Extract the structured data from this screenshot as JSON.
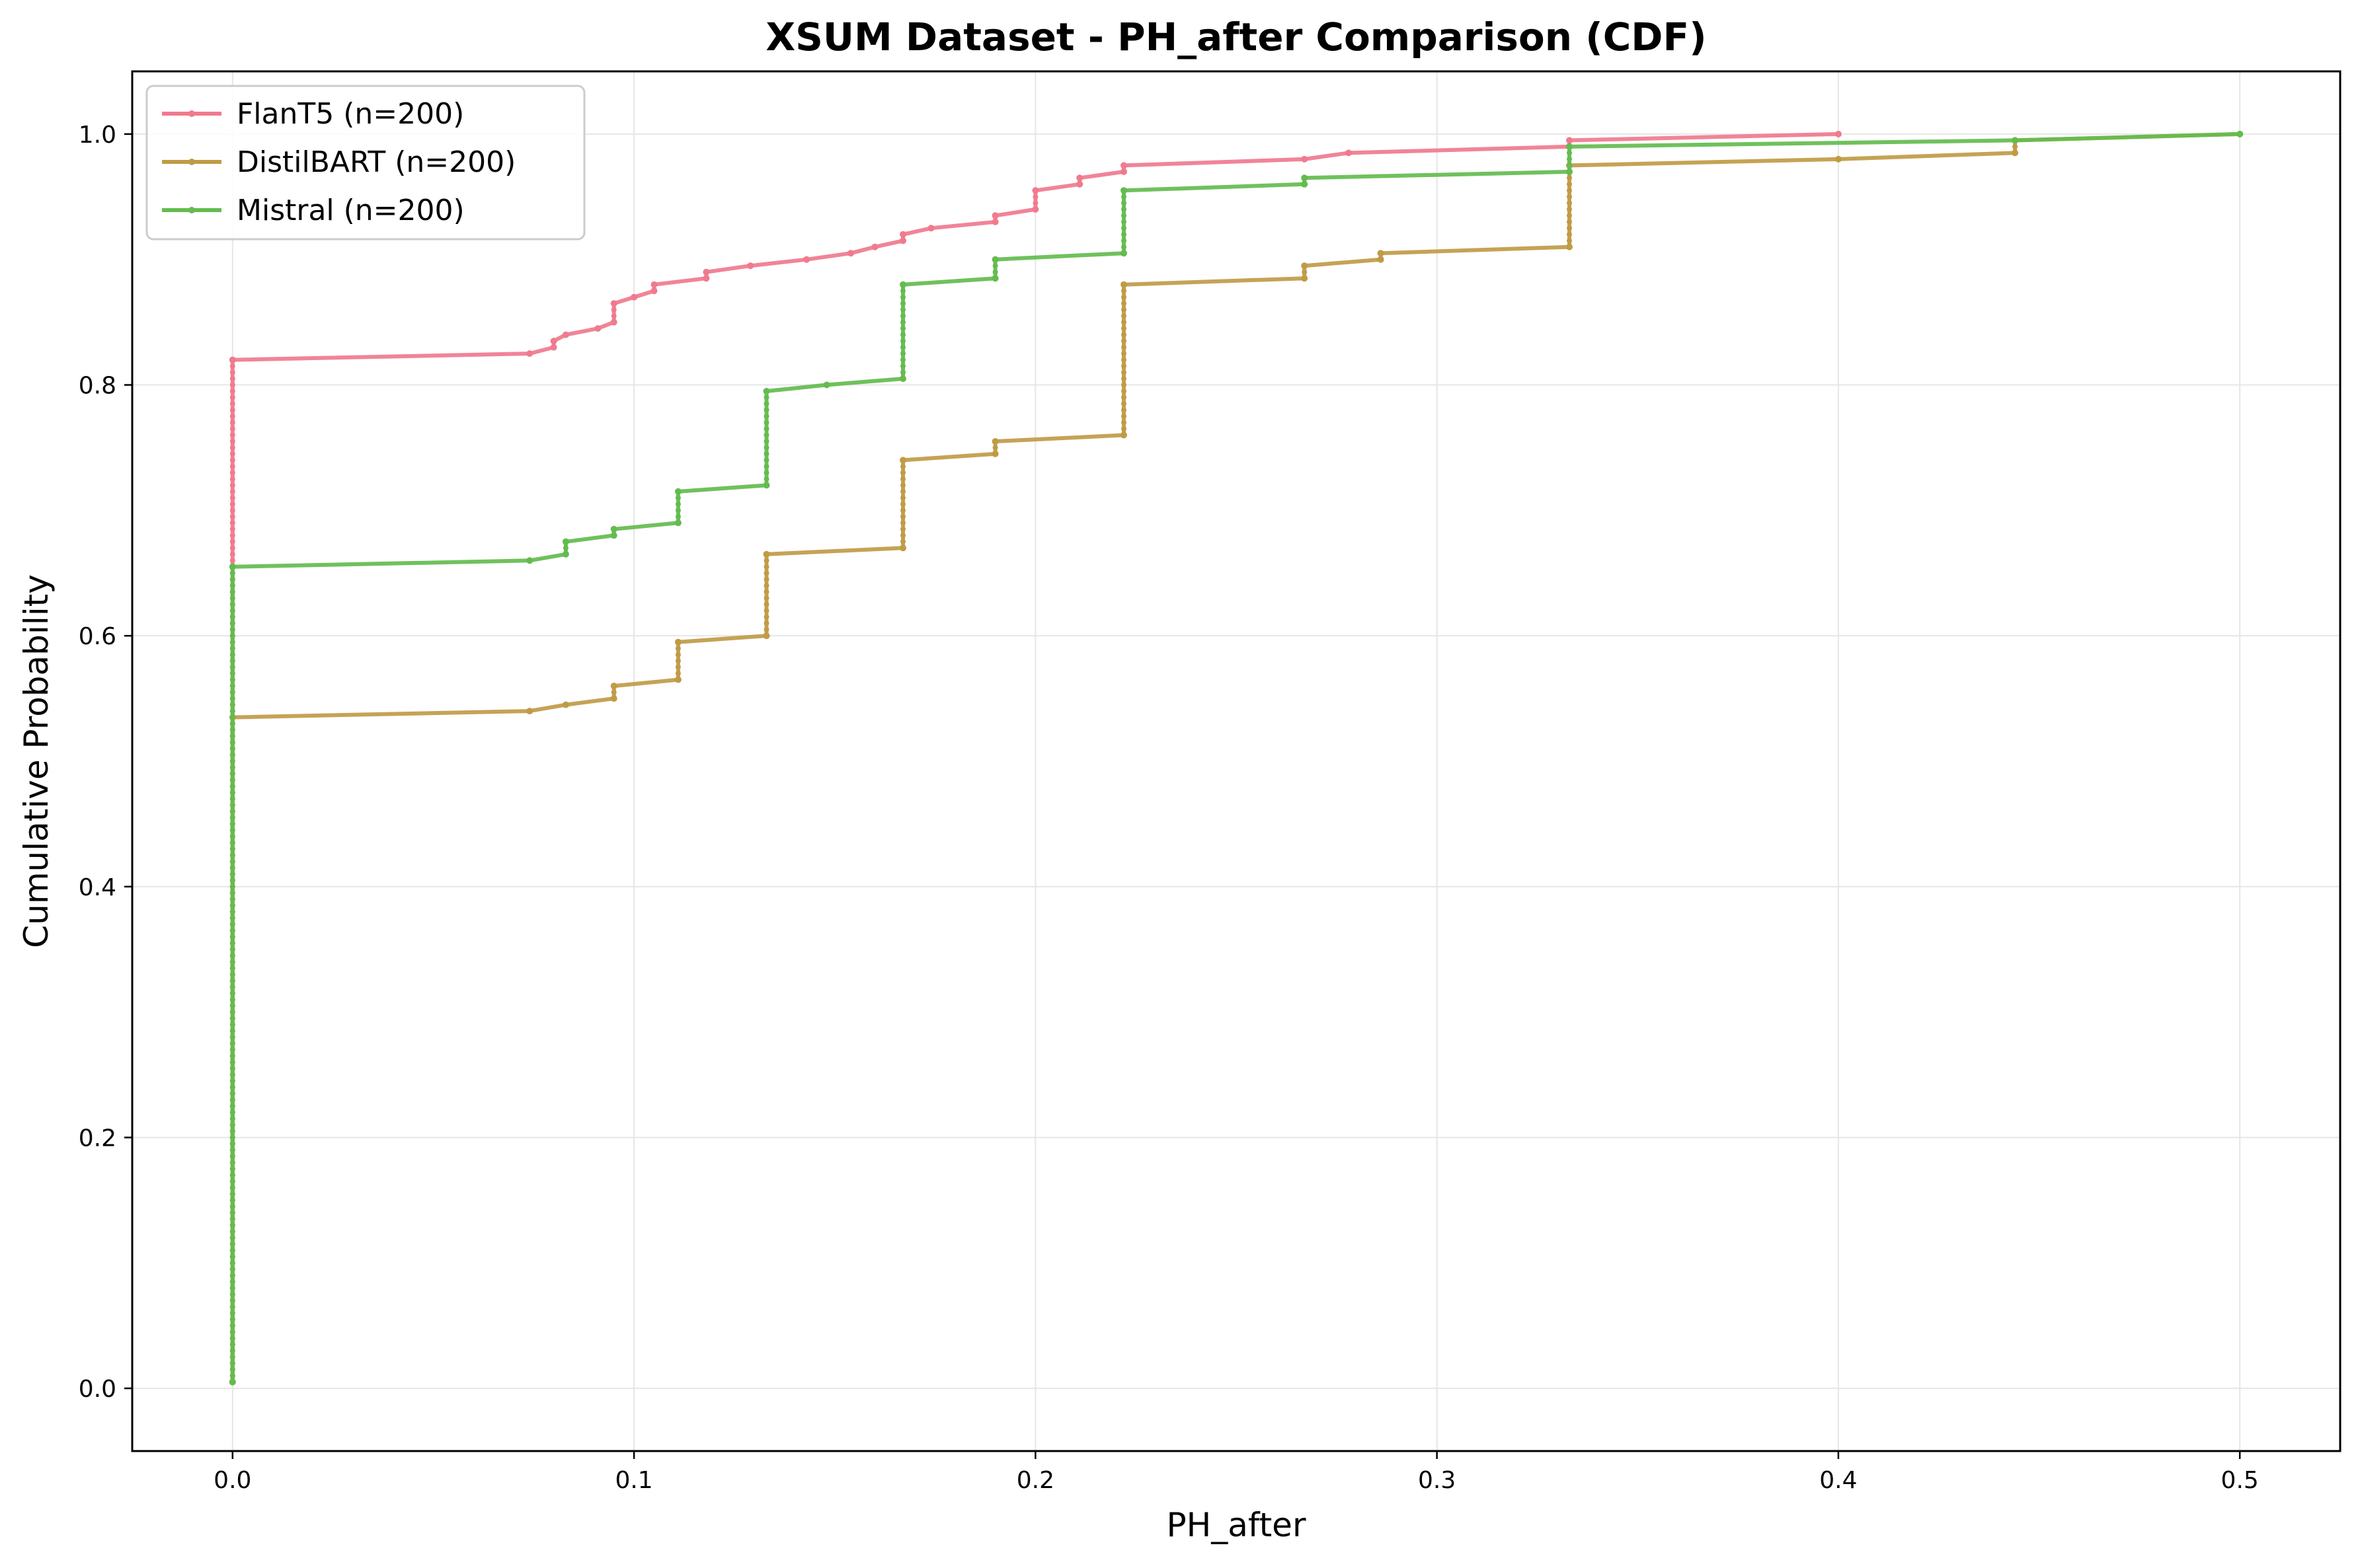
{
  "chart_data": {
    "type": "line",
    "title": "XSUM Dataset - PH_after Comparison (CDF)",
    "xlabel": "PH_after",
    "ylabel": "Cumulative Probability",
    "xlim": [
      -0.025,
      0.525
    ],
    "ylim": [
      -0.05,
      1.05
    ],
    "xticks": [
      0.0,
      0.1,
      0.2,
      0.3,
      0.4,
      0.5
    ],
    "xtick_labels": [
      "0.0",
      "0.1",
      "0.2",
      "0.3",
      "0.4",
      "0.5"
    ],
    "yticks": [
      0.0,
      0.2,
      0.4,
      0.6,
      0.8,
      1.0
    ],
    "ytick_labels": [
      "0.0",
      "0.2",
      "0.4",
      "0.6",
      "0.8",
      "1.0"
    ],
    "grid": true,
    "legend_position": "top-left",
    "series": [
      {
        "name": "FlanT5 (n=200)",
        "color": "#f07a8e",
        "points": [
          [
            0.0,
            0.005
          ],
          [
            0.0,
            0.82
          ],
          [
            0.074,
            0.825
          ],
          [
            0.08,
            0.83
          ],
          [
            0.08,
            0.835
          ],
          [
            0.083,
            0.84
          ],
          [
            0.091,
            0.845
          ],
          [
            0.095,
            0.85
          ],
          [
            0.095,
            0.865
          ],
          [
            0.1,
            0.87
          ],
          [
            0.105,
            0.875
          ],
          [
            0.105,
            0.88
          ],
          [
            0.118,
            0.885
          ],
          [
            0.118,
            0.89
          ],
          [
            0.129,
            0.895
          ],
          [
            0.143,
            0.9
          ],
          [
            0.154,
            0.905
          ],
          [
            0.16,
            0.91
          ],
          [
            0.167,
            0.915
          ],
          [
            0.167,
            0.92
          ],
          [
            0.174,
            0.925
          ],
          [
            0.19,
            0.93
          ],
          [
            0.19,
            0.935
          ],
          [
            0.2,
            0.94
          ],
          [
            0.2,
            0.955
          ],
          [
            0.211,
            0.96
          ],
          [
            0.211,
            0.965
          ],
          [
            0.222,
            0.97
          ],
          [
            0.222,
            0.975
          ],
          [
            0.267,
            0.98
          ],
          [
            0.278,
            0.985
          ],
          [
            0.333,
            0.99
          ],
          [
            0.333,
            0.995
          ],
          [
            0.4,
            1.0
          ]
        ]
      },
      {
        "name": "DistilBART (n=200)",
        "color": "#c09b46",
        "points": [
          [
            0.0,
            0.005
          ],
          [
            0.0,
            0.535
          ],
          [
            0.074,
            0.54
          ],
          [
            0.083,
            0.545
          ],
          [
            0.095,
            0.55
          ],
          [
            0.095,
            0.56
          ],
          [
            0.111,
            0.565
          ],
          [
            0.111,
            0.595
          ],
          [
            0.133,
            0.6
          ],
          [
            0.133,
            0.665
          ],
          [
            0.167,
            0.67
          ],
          [
            0.167,
            0.74
          ],
          [
            0.19,
            0.745
          ],
          [
            0.19,
            0.755
          ],
          [
            0.222,
            0.76
          ],
          [
            0.222,
            0.88
          ],
          [
            0.267,
            0.885
          ],
          [
            0.267,
            0.895
          ],
          [
            0.286,
            0.9
          ],
          [
            0.286,
            0.905
          ],
          [
            0.333,
            0.91
          ],
          [
            0.333,
            0.975
          ],
          [
            0.4,
            0.98
          ],
          [
            0.444,
            0.985
          ],
          [
            0.444,
            0.995
          ],
          [
            0.5,
            1.0
          ]
        ]
      },
      {
        "name": "Mistral (n=200)",
        "color": "#63bc4e",
        "points": [
          [
            0.0,
            0.005
          ],
          [
            0.0,
            0.655
          ],
          [
            0.074,
            0.66
          ],
          [
            0.083,
            0.665
          ],
          [
            0.083,
            0.675
          ],
          [
            0.095,
            0.68
          ],
          [
            0.095,
            0.685
          ],
          [
            0.111,
            0.69
          ],
          [
            0.111,
            0.715
          ],
          [
            0.133,
            0.72
          ],
          [
            0.133,
            0.795
          ],
          [
            0.148,
            0.8
          ],
          [
            0.167,
            0.805
          ],
          [
            0.167,
            0.88
          ],
          [
            0.19,
            0.885
          ],
          [
            0.19,
            0.9
          ],
          [
            0.222,
            0.905
          ],
          [
            0.222,
            0.955
          ],
          [
            0.267,
            0.96
          ],
          [
            0.267,
            0.965
          ],
          [
            0.333,
            0.97
          ],
          [
            0.333,
            0.99
          ],
          [
            0.444,
            0.995
          ],
          [
            0.5,
            1.0
          ]
        ]
      }
    ]
  }
}
